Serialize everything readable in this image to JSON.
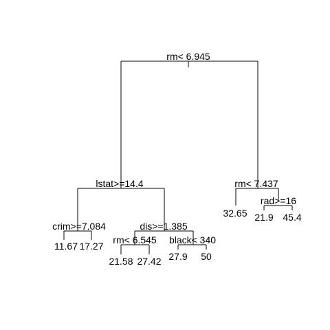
{
  "tree": {
    "splits": {
      "root": "rm< 6.945",
      "lstat": "lstat>=14.4",
      "rm_right": "rm< 7.437",
      "crim": "crim>=7.084",
      "dis": "dis>=1.385",
      "rad": "rad>=16",
      "rm_mid": "rm< 6.545",
      "black": "black< 340"
    },
    "leaves": {
      "crim_left": "11.67",
      "crim_right": "17.27",
      "rm_mid_left": "21.58",
      "rm_mid_right": "27.42",
      "black_left": "27.9",
      "black_right": "50",
      "rm_right_left": "32.65",
      "rad_left": "21.9",
      "rad_right": "45.4"
    }
  }
}
